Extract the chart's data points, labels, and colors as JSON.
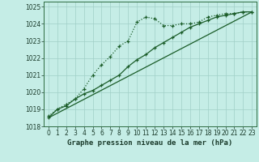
{
  "title": "Graphe pression niveau de la mer (hPa)",
  "bg_color": "#c5ede6",
  "grid_color": "#a0cfc7",
  "line_color": "#1a5c28",
  "spine_color": "#2d6b40",
  "xlim": [
    -0.5,
    23.5
  ],
  "ylim": [
    1018,
    1025.3
  ],
  "yticks": [
    1018,
    1019,
    1020,
    1021,
    1022,
    1023,
    1024,
    1025
  ],
  "xticks": [
    0,
    1,
    2,
    3,
    4,
    5,
    6,
    7,
    8,
    9,
    10,
    11,
    12,
    13,
    14,
    15,
    16,
    17,
    18,
    19,
    20,
    21,
    22,
    23
  ],
  "series1_x": [
    0,
    1,
    2,
    3,
    4,
    5,
    6,
    7,
    8,
    9,
    10,
    11,
    12,
    13,
    14,
    15,
    16,
    17,
    18,
    19,
    20,
    21,
    22,
    23
  ],
  "series1_y": [
    1018.6,
    1019.0,
    1019.3,
    1019.6,
    1020.2,
    1021.0,
    1021.6,
    1022.1,
    1022.7,
    1023.0,
    1024.1,
    1024.4,
    1024.3,
    1023.9,
    1023.9,
    1024.0,
    1024.0,
    1024.1,
    1024.4,
    1024.5,
    1024.6,
    1024.6,
    1024.7,
    1024.7
  ],
  "series2_x": [
    0,
    1,
    2,
    3,
    4,
    5,
    6,
    7,
    8,
    9,
    10,
    11,
    12,
    13,
    14,
    15,
    16,
    17,
    18,
    19,
    20,
    21,
    22,
    23
  ],
  "series2_y": [
    1018.5,
    1019.0,
    1019.2,
    1019.6,
    1019.9,
    1020.1,
    1020.4,
    1020.7,
    1021.0,
    1021.5,
    1021.9,
    1022.2,
    1022.6,
    1022.9,
    1023.2,
    1023.5,
    1023.8,
    1024.0,
    1024.2,
    1024.4,
    1024.5,
    1024.6,
    1024.7,
    1024.7
  ],
  "series3_x": [
    0,
    23
  ],
  "series3_y": [
    1018.5,
    1024.7
  ],
  "tick_fontsize": 5.5,
  "xlabel_fontsize": 6.5
}
